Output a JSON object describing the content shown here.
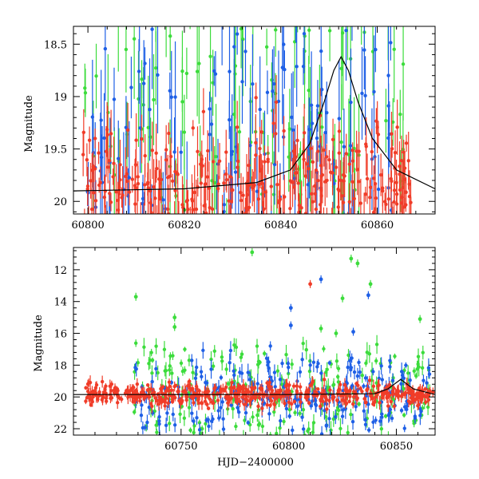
{
  "colors": {
    "red": "#f03c28",
    "blue": "#1e5fe6",
    "green": "#3cdc3c",
    "model": "#000000"
  },
  "chart_data": [
    {
      "type": "scatter",
      "panel": "top",
      "xlabel": "",
      "ylabel": "Magnitude",
      "xlim": [
        60797,
        60872
      ],
      "ylim": [
        20.12,
        18.33
      ],
      "y_inverted": true,
      "xticks": [
        60800,
        60820,
        60840,
        60860
      ],
      "yticks": [
        18.5,
        19,
        19.5,
        20
      ],
      "xtick_labels": [
        "60800",
        "60820",
        "60840",
        "60860"
      ],
      "ytick_labels": [
        "18.5",
        "19",
        "19.5",
        "20"
      ],
      "model_curve": {
        "description_free": true,
        "x": [
          60797,
          60820,
          60835,
          60842,
          60846,
          60849,
          60851,
          60852.5,
          60854,
          60856,
          60859,
          60864,
          60872
        ],
        "y": [
          19.9,
          19.88,
          19.82,
          19.7,
          19.45,
          19.05,
          18.75,
          18.62,
          18.75,
          19.05,
          19.4,
          19.7,
          19.88
        ]
      },
      "series": [
        {
          "color_key": "red",
          "x_range": [
            60799,
            60867
          ],
          "base": 19.85,
          "scatter": 0.28,
          "err": 0.22,
          "count": 360
        },
        {
          "color_key": "blue",
          "x_range": [
            60799,
            60865
          ],
          "base": 19.4,
          "scatter": 0.55,
          "err": 0.45,
          "count": 140
        },
        {
          "color_key": "green",
          "x_range": [
            60799,
            60866
          ],
          "base": 19.1,
          "scatter": 0.6,
          "err": 0.45,
          "count": 110
        }
      ]
    },
    {
      "type": "scatter",
      "panel": "bottom",
      "xlabel": "HJD−2400000",
      "ylabel": "Magnitude",
      "xlim": [
        60700,
        60868
      ],
      "ylim": [
        22.4,
        10.6
      ],
      "y_inverted": true,
      "xticks": [
        60750,
        60800,
        60850
      ],
      "yticks": [
        12,
        14,
        16,
        18,
        20,
        22
      ],
      "xtick_labels": [
        "60750",
        "60800",
        "60850"
      ],
      "ytick_labels": [
        "12",
        "14",
        "16",
        "18",
        "20",
        "22"
      ],
      "model_curve": {
        "x": [
          60700,
          60800,
          60840,
          60846,
          60852,
          60858,
          60868
        ],
        "y": [
          19.85,
          19.85,
          19.8,
          19.5,
          18.9,
          19.5,
          19.85
        ]
      },
      "series": [
        {
          "color_key": "red",
          "x_range": [
            60705,
            60867
          ],
          "base": 19.85,
          "scatter": 0.35,
          "err": 0.35,
          "count": 520
        },
        {
          "color_key": "blue",
          "x_range": [
            60728,
            60866
          ],
          "base": 19.9,
          "scatter": 1.1,
          "err": 0.5,
          "count": 260
        },
        {
          "color_key": "green",
          "x_range": [
            60728,
            60866
          ],
          "base": 19.6,
          "scatter": 1.5,
          "err": 0.5,
          "count": 240
        }
      ],
      "outliers": [
        {
          "color_key": "green",
          "x": 60783,
          "y": 10.9
        },
        {
          "color_key": "green",
          "x": 60829,
          "y": 11.3
        },
        {
          "color_key": "green",
          "x": 60832,
          "y": 11.6
        },
        {
          "color_key": "green",
          "x": 60729,
          "y": 13.7
        },
        {
          "color_key": "green",
          "x": 60838,
          "y": 12.9
        },
        {
          "color_key": "green",
          "x": 60825,
          "y": 13.8
        },
        {
          "color_key": "green",
          "x": 60861,
          "y": 15.1
        },
        {
          "color_key": "green",
          "x": 60747,
          "y": 15.0
        },
        {
          "color_key": "green",
          "x": 60747,
          "y": 15.6
        },
        {
          "color_key": "green",
          "x": 60815,
          "y": 15.7
        },
        {
          "color_key": "green",
          "x": 60822,
          "y": 16.0
        },
        {
          "color_key": "red",
          "x": 60810,
          "y": 12.9
        },
        {
          "color_key": "blue",
          "x": 60815,
          "y": 12.6
        },
        {
          "color_key": "blue",
          "x": 60837,
          "y": 13.6
        },
        {
          "color_key": "blue",
          "x": 60801,
          "y": 14.4
        },
        {
          "color_key": "blue",
          "x": 60801,
          "y": 15.5
        },
        {
          "color_key": "blue",
          "x": 60830,
          "y": 15.9
        }
      ]
    }
  ]
}
